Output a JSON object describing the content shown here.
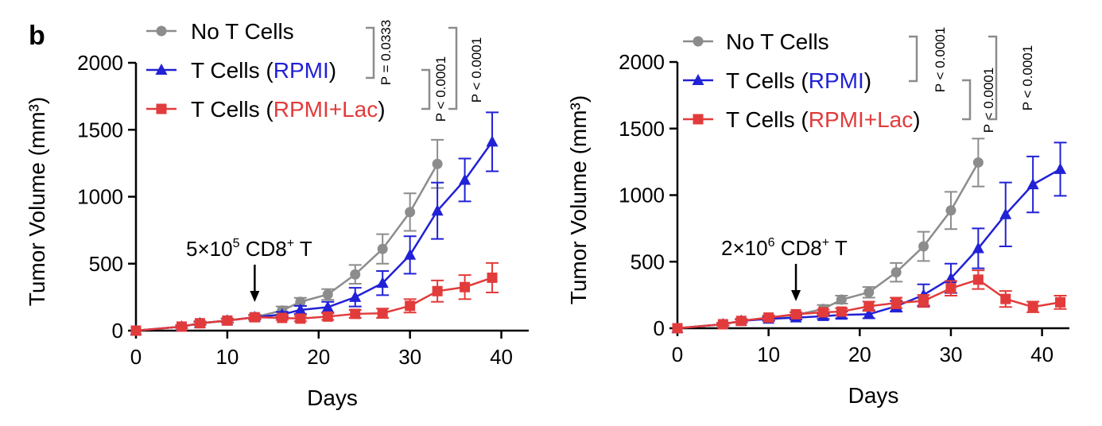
{
  "panel_label": "b",
  "chart_data": [
    {
      "type": "line",
      "xlabel": "Days",
      "ylabel": "Tumor Volume (mm³)",
      "xlim": [
        0,
        43
      ],
      "ylim": [
        0,
        2000
      ],
      "xticks": [
        "0",
        "10",
        "20",
        "30",
        "40"
      ],
      "yticks": [
        "0",
        "500",
        "1000",
        "1500",
        "2000"
      ],
      "legend_position": "top-left",
      "annotation": {
        "pre": "5×10",
        "sup1": "5",
        "mid": " CD8",
        "sup2": "+",
        "post": " T",
        "x": 13
      },
      "significance": [
        "P = 0.0333",
        "P < 0.0001",
        "P < 0.0001"
      ],
      "series": [
        {
          "name": "No T Cells",
          "color": "#8c8c8c",
          "marker": "circle",
          "x": [
            0,
            5,
            7,
            10,
            13,
            16,
            18,
            21,
            24,
            27,
            30,
            33
          ],
          "y": [
            0,
            30,
            55,
            75,
            100,
            150,
            215,
            270,
            420,
            610,
            885,
            1245
          ],
          "err": [
            0,
            10,
            15,
            15,
            20,
            30,
            30,
            40,
            70,
            110,
            140,
            180
          ]
        },
        {
          "name": "T Cells (RPMI)",
          "label_pre": "T Cells (",
          "label_inner": "RPMI",
          "label_post": ")",
          "color": "#2121d6",
          "marker": "triangle",
          "x": [
            0,
            5,
            7,
            10,
            13,
            16,
            18,
            21,
            24,
            27,
            30,
            33,
            36,
            39
          ],
          "y": [
            0,
            30,
            55,
            75,
            100,
            120,
            155,
            175,
            250,
            355,
            565,
            895,
            1125,
            1410
          ],
          "err": [
            0,
            10,
            12,
            15,
            15,
            20,
            30,
            40,
            70,
            90,
            140,
            210,
            160,
            220
          ]
        },
        {
          "name": "T Cells (RPMI+Lac)",
          "label_pre": "T Cells (",
          "label_inner": "RPMI+Lac",
          "label_post": ")",
          "color": "#e23b3b",
          "marker": "square",
          "x": [
            0,
            5,
            7,
            10,
            13,
            16,
            18,
            21,
            24,
            27,
            30,
            33,
            36,
            39
          ],
          "y": [
            0,
            30,
            55,
            75,
            100,
            95,
            90,
            105,
            125,
            130,
            185,
            295,
            325,
            395
          ],
          "err": [
            0,
            10,
            12,
            15,
            15,
            15,
            20,
            25,
            30,
            35,
            50,
            80,
            90,
            110
          ]
        }
      ]
    },
    {
      "type": "line",
      "xlabel": "Days",
      "ylabel": "Tumor Volume (mm³)",
      "xlim": [
        0,
        43
      ],
      "ylim": [
        0,
        2000
      ],
      "xticks": [
        "0",
        "10",
        "20",
        "30",
        "40"
      ],
      "yticks": [
        "0",
        "500",
        "1000",
        "1500",
        "2000"
      ],
      "legend_position": "top-left",
      "annotation": {
        "pre": "2×10",
        "sup1": "6",
        "mid": " CD8",
        "sup2": "+",
        "post": " T",
        "x": 13
      },
      "significance": [
        "P < 0.0001",
        "P < 0.0001",
        "P < 0.0001"
      ],
      "series": [
        {
          "name": "No T Cells",
          "color": "#8c8c8c",
          "marker": "circle",
          "x": [
            0,
            5,
            7,
            10,
            13,
            16,
            18,
            21,
            24,
            27,
            30,
            33
          ],
          "y": [
            0,
            30,
            55,
            80,
            100,
            145,
            215,
            270,
            420,
            615,
            885,
            1245
          ],
          "err": [
            0,
            10,
            15,
            15,
            20,
            30,
            30,
            40,
            70,
            110,
            140,
            180
          ]
        },
        {
          "name": "T Cells (RPMI)",
          "label_pre": "T Cells (",
          "label_inner": "RPMI",
          "label_post": ")",
          "color": "#2121d6",
          "marker": "triangle",
          "x": [
            0,
            5,
            7,
            10,
            13,
            16,
            18,
            21,
            24,
            27,
            30,
            33,
            36,
            39,
            42
          ],
          "y": [
            0,
            30,
            55,
            70,
            80,
            90,
            100,
            105,
            165,
            250,
            375,
            600,
            855,
            1080,
            1195
          ],
          "err": [
            0,
            10,
            12,
            15,
            15,
            20,
            25,
            30,
            40,
            80,
            110,
            150,
            240,
            210,
            200
          ]
        },
        {
          "name": "T Cells (RPMI+Lac)",
          "label_pre": "T Cells (",
          "label_inner": "RPMI+Lac",
          "label_post": ")",
          "color": "#e23b3b",
          "marker": "square",
          "x": [
            0,
            5,
            7,
            10,
            13,
            16,
            18,
            21,
            24,
            27,
            30,
            33,
            36,
            39,
            42
          ],
          "y": [
            0,
            30,
            55,
            80,
            105,
            120,
            125,
            165,
            190,
            205,
            300,
            365,
            220,
            160,
            195
          ],
          "err": [
            0,
            10,
            12,
            15,
            15,
            20,
            25,
            35,
            40,
            45,
            55,
            70,
            60,
            40,
            50
          ]
        }
      ]
    }
  ]
}
